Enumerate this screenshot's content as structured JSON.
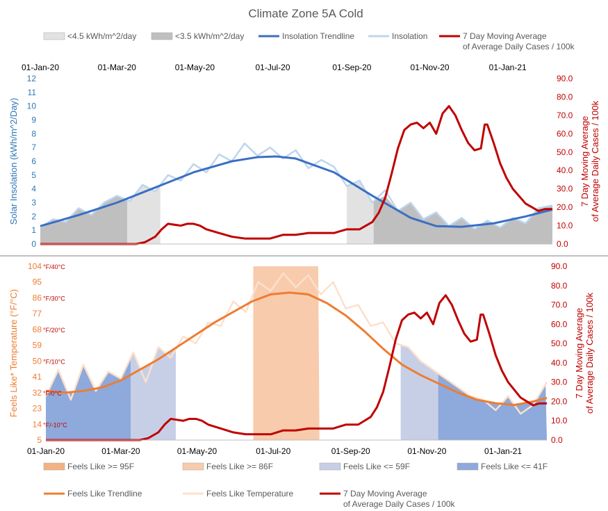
{
  "colors": {
    "insolation_trend": "#3a6fc4",
    "insolation": "#bcd6ee",
    "cases": "#c00000",
    "band45": "#e2e2e2",
    "band35": "#bfbfbf",
    "feels_trend": "#ed7d31",
    "feels": "#fbe0cc",
    "ge95": "#f4b183",
    "ge86": "#f8cbad",
    "le59": "#c7cfe6",
    "le41": "#8ea9db",
    "axis_left_top": "#2e75b6",
    "axis_left_bottom": "#ed7d31",
    "axis_right": "#c00000"
  },
  "chart_data": [
    {
      "type": "line",
      "title": "Climate Zone 5A Cold",
      "x_ticks_top": [
        "01-Jan-20",
        "01-Mar-20",
        "01-May-20",
        "01-Jul-20",
        "01-Sep-20",
        "01-Nov-20",
        "01-Jan-21"
      ],
      "x_start": "01-Jan-20",
      "x_end": "04-Feb-21",
      "ylabel_left": "Solar Insolation (kWh/m^2/Day)",
      "ylabel_right": [
        "7 Day Moving Average",
        "of Average Daily Cases / 100k"
      ],
      "ylim_left": [
        0,
        12
      ],
      "yticks_left": [
        "0",
        "1",
        "2",
        "3",
        "4",
        "5",
        "6",
        "7",
        "8",
        "9",
        "10",
        "11",
        "12"
      ],
      "ylim_right": [
        0,
        90
      ],
      "yticks_right": [
        "0.0",
        "10.0",
        "20.0",
        "30.0",
        "40.0",
        "50.0",
        "60.0",
        "70.0",
        "80.0",
        "90.0"
      ],
      "legend": [
        {
          "label": "<4.5 kWh/m^2/day",
          "kind": "box",
          "color": "#e2e2e2"
        },
        {
          "label": "<3.5 kWh/m^2/day",
          "kind": "box",
          "color": "#bfbfbf"
        },
        {
          "label": "Insolation Trendline",
          "kind": "line",
          "color": "#3a6fc4"
        },
        {
          "label": "Insolation",
          "kind": "line",
          "color": "#bcd6ee"
        },
        {
          "label": "7 Day Moving Average",
          "label2": "of Average Daily Cases / 100k",
          "kind": "line",
          "color": "#c00000"
        }
      ],
      "bands": [
        {
          "name": "<3.5 kWh/m^2/day",
          "from_day": 0,
          "to_day": 68,
          "color": "#bfbfbf"
        },
        {
          "name": "<4.5 kWh/m^2/day",
          "from_day": 68,
          "to_day": 94,
          "color": "#e2e2e2"
        },
        {
          "name": "<4.5 kWh/m^2/day",
          "from_day": 240,
          "to_day": 261,
          "color": "#e2e2e2"
        },
        {
          "name": "<3.5 kWh/m^2/day",
          "from_day": 261,
          "to_day": 401,
          "color": "#bfbfbf"
        }
      ],
      "series": [
        {
          "name": "Insolation Trendline",
          "axis": "left",
          "x": [
            0,
            30,
            60,
            90,
            120,
            150,
            170,
            185,
            200,
            230,
            260,
            290,
            310,
            330,
            355,
            380,
            401
          ],
          "values": [
            1.3,
            2.1,
            3.0,
            4.1,
            5.2,
            6.0,
            6.3,
            6.35,
            6.2,
            5.2,
            3.5,
            1.9,
            1.3,
            1.25,
            1.5,
            2.0,
            2.5
          ]
        },
        {
          "name": "Insolation",
          "axis": "left",
          "x": [
            0,
            10,
            20,
            30,
            40,
            50,
            60,
            70,
            80,
            90,
            100,
            110,
            120,
            130,
            140,
            150,
            160,
            170,
            180,
            190,
            200,
            210,
            220,
            230,
            240,
            250,
            260,
            270,
            280,
            290,
            300,
            310,
            320,
            330,
            340,
            350,
            360,
            370,
            380,
            390,
            401
          ],
          "values": [
            1.2,
            1.8,
            1.6,
            2.6,
            2.1,
            3.0,
            3.5,
            3.1,
            4.3,
            3.8,
            5.0,
            4.6,
            5.8,
            5.2,
            6.5,
            6.0,
            7.3,
            6.4,
            7.0,
            6.2,
            6.8,
            5.5,
            6.1,
            5.6,
            4.2,
            4.6,
            3.0,
            3.9,
            2.4,
            3.0,
            1.8,
            2.3,
            1.3,
            1.9,
            1.1,
            1.7,
            1.2,
            1.9,
            1.5,
            2.6,
            2.8
          ]
        },
        {
          "name": "7 Day Moving Average of Average Daily Cases / 100k",
          "axis": "right",
          "x": [
            0,
            75,
            82,
            90,
            95,
            100,
            110,
            115,
            120,
            125,
            130,
            140,
            150,
            160,
            170,
            180,
            190,
            200,
            210,
            220,
            230,
            235,
            240,
            245,
            250,
            255,
            260,
            265,
            270,
            275,
            280,
            285,
            290,
            295,
            300,
            305,
            310,
            315,
            320,
            322,
            325,
            330,
            335,
            340,
            345,
            348,
            350,
            355,
            360,
            365,
            370,
            375,
            380,
            385,
            390,
            395,
            401
          ],
          "values": [
            0,
            0,
            1,
            4,
            8,
            11,
            10,
            11,
            11,
            10,
            8,
            6,
            4,
            3,
            3,
            3,
            5,
            5,
            6,
            6,
            6,
            7,
            8,
            8,
            8,
            10,
            12,
            17,
            25,
            38,
            52,
            62,
            65,
            66,
            63,
            66,
            60,
            71,
            75,
            73,
            70,
            62,
            55,
            51,
            52,
            65,
            65,
            55,
            44,
            36,
            30,
            26,
            22,
            20,
            18,
            19,
            19
          ]
        }
      ]
    },
    {
      "type": "line",
      "x_ticks_bottom": [
        "01-Jan-20",
        "01-Mar-20",
        "01-May-20",
        "01-Jul-20",
        "01-Sep-20",
        "01-Nov-20",
        "01-Jan-21"
      ],
      "ylabel_left": "Feels Like* Temperature (°F/°C)",
      "ylabel_right": [
        "7 Day Moving Average",
        "of Average Daily Cases / 100k"
      ],
      "ylim_left": [
        5,
        104
      ],
      "yticks_left": [
        "5",
        "14",
        "23",
        "32",
        "41",
        "50",
        "59",
        "68",
        "77",
        "86",
        "95",
        "104"
      ],
      "celsius_labels": [
        {
          "f": 14,
          "label": "°F/-10°C"
        },
        {
          "f": 32,
          "label": "°F/0°C"
        },
        {
          "f": 50,
          "label": "°F/10°C"
        },
        {
          "f": 68,
          "label": "°F/20°C"
        },
        {
          "f": 86,
          "label": "°F/30°C"
        },
        {
          "f": 104,
          "label": "°F/40°C"
        }
      ],
      "ylim_right": [
        0,
        90
      ],
      "yticks_right": [
        "0.0",
        "10.0",
        "20.0",
        "30.0",
        "40.0",
        "50.0",
        "60.0",
        "70.0",
        "80.0",
        "90.0"
      ],
      "legend": [
        {
          "label": "Feels Like >= 95F",
          "kind": "box",
          "color": "#f4b183"
        },
        {
          "label": "Feels Like >= 86F",
          "kind": "box",
          "color": "#f8cbad"
        },
        {
          "label": "Feels Like <= 59F",
          "kind": "box",
          "color": "#c7cfe6"
        },
        {
          "label": "Feels Like <= 41F",
          "kind": "box",
          "color": "#8ea9db"
        },
        {
          "label": "Feels Like Trendline",
          "kind": "line",
          "color": "#ed7d31"
        },
        {
          "label": "Feels Like Temperature",
          "kind": "line",
          "color": "#fbe0cc"
        },
        {
          "label": "7 Day Moving Average",
          "label2": "of Average Daily Cases / 100k",
          "kind": "line",
          "color": "#c00000"
        }
      ],
      "bands": [
        {
          "name": "Feels Like <= 41F",
          "from_day": 0,
          "to_day": 68,
          "color": "#8ea9db"
        },
        {
          "name": "Feels Like <= 59F",
          "from_day": 68,
          "to_day": 104,
          "color": "#c7cfe6"
        },
        {
          "name": "Feels Like >= 86F",
          "from_day": 166,
          "to_day": 219,
          "color": "#f8cbad"
        },
        {
          "name": "Feels Like <= 59F",
          "from_day": 284,
          "to_day": 314,
          "color": "#c7cfe6"
        },
        {
          "name": "Feels Like <= 41F",
          "from_day": 314,
          "to_day": 401,
          "color": "#8ea9db"
        }
      ],
      "series": [
        {
          "name": "Feels Like Trendline",
          "axis": "left",
          "x": [
            0,
            15,
            30,
            45,
            60,
            75,
            90,
            105,
            120,
            135,
            150,
            165,
            180,
            195,
            210,
            225,
            240,
            255,
            270,
            285,
            300,
            315,
            330,
            345,
            360,
            375,
            390,
            401
          ],
          "values": [
            33,
            32,
            33,
            35,
            39,
            45,
            51,
            58,
            65,
            72,
            78,
            84,
            88,
            89,
            88,
            83,
            76,
            67,
            57,
            48,
            42,
            37,
            32,
            28,
            26,
            25,
            27,
            29
          ]
        },
        {
          "name": "Feels Like Temperature",
          "axis": "left",
          "x": [
            0,
            10,
            20,
            30,
            40,
            50,
            60,
            70,
            80,
            90,
            100,
            110,
            120,
            130,
            140,
            150,
            160,
            170,
            180,
            190,
            200,
            210,
            220,
            230,
            240,
            250,
            260,
            270,
            280,
            290,
            300,
            310,
            320,
            330,
            340,
            350,
            360,
            370,
            380,
            390,
            401
          ],
          "values": [
            30,
            45,
            28,
            48,
            33,
            44,
            40,
            55,
            38,
            58,
            52,
            64,
            60,
            72,
            70,
            84,
            78,
            95,
            90,
            100,
            92,
            99,
            88,
            95,
            80,
            82,
            70,
            72,
            60,
            58,
            50,
            45,
            40,
            35,
            30,
            28,
            22,
            30,
            20,
            25,
            38
          ]
        },
        {
          "name": "7 Day Moving Average of Average Daily Cases / 100k",
          "axis": "right",
          "x": [
            0,
            75,
            82,
            90,
            95,
            100,
            110,
            115,
            120,
            125,
            130,
            140,
            150,
            160,
            170,
            180,
            190,
            200,
            210,
            220,
            230,
            235,
            240,
            245,
            250,
            255,
            260,
            265,
            270,
            275,
            280,
            285,
            290,
            295,
            300,
            305,
            310,
            315,
            320,
            322,
            325,
            330,
            335,
            340,
            345,
            348,
            350,
            355,
            360,
            365,
            370,
            375,
            380,
            385,
            390,
            395,
            401
          ],
          "values": [
            0,
            0,
            1,
            4,
            8,
            11,
            10,
            11,
            11,
            10,
            8,
            6,
            4,
            3,
            3,
            3,
            5,
            5,
            6,
            6,
            6,
            7,
            8,
            8,
            8,
            10,
            12,
            17,
            25,
            38,
            52,
            62,
            65,
            66,
            63,
            66,
            60,
            71,
            75,
            73,
            70,
            62,
            55,
            51,
            52,
            65,
            65,
            55,
            44,
            36,
            30,
            26,
            22,
            20,
            18,
            19,
            19
          ]
        }
      ]
    }
  ]
}
